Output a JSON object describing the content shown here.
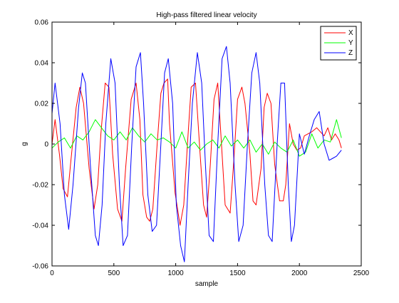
{
  "chart_data": {
    "type": "line",
    "title": "High-pass filtered linear velocity",
    "xlabel": "sample",
    "ylabel": "g",
    "xlim": [
      0,
      2500
    ],
    "ylim": [
      -0.06,
      0.06
    ],
    "x_ticks": [
      0,
      500,
      1000,
      1500,
      2000,
      2500
    ],
    "x_tick_labels": [
      "0",
      "500",
      "1000",
      "1500",
      "2000",
      "2500"
    ],
    "y_ticks": [
      -0.06,
      -0.04,
      -0.02,
      0,
      0.02,
      0.04,
      0.06
    ],
    "y_tick_labels": [
      "-0.06",
      "-0.04",
      "-0.02",
      "0",
      "0.02",
      "0.04",
      "0.06"
    ],
    "grid": false,
    "legend_position": "top-right",
    "series": [
      {
        "name": "X",
        "color": "#ff0000",
        "x": [
          0,
          25,
          60,
          90,
          125,
          150,
          195,
          225,
          255,
          300,
          340,
          370,
          395,
          430,
          460,
          490,
          530,
          565,
          595,
          640,
          680,
          710,
          735,
          765,
          790,
          815,
          850,
          880,
          905,
          935,
          950,
          995,
          1035,
          1065,
          1095,
          1125,
          1160,
          1195,
          1225,
          1250,
          1280,
          1310,
          1340,
          1375,
          1400,
          1440,
          1470,
          1500,
          1535,
          1560,
          1600,
          1625,
          1650,
          1690,
          1715,
          1740,
          1770,
          1800,
          1840,
          1870,
          1890,
          1920,
          1950,
          1980,
          2010,
          2040,
          2070,
          2100,
          2140,
          2170,
          2200,
          2230,
          2260,
          2290,
          2320,
          2340
        ],
        "y": [
          0.0,
          0.012,
          -0.005,
          -0.022,
          -0.026,
          -0.01,
          0.018,
          0.028,
          0.02,
          -0.012,
          -0.032,
          -0.02,
          0.005,
          0.03,
          0.028,
          -0.005,
          -0.032,
          -0.038,
          -0.012,
          0.022,
          0.03,
          0.012,
          -0.025,
          -0.036,
          -0.038,
          -0.032,
          0.0,
          0.025,
          0.03,
          0.032,
          0.01,
          -0.024,
          -0.04,
          -0.03,
          0.0,
          0.028,
          0.03,
          -0.003,
          -0.03,
          -0.036,
          -0.01,
          0.022,
          0.03,
          -0.005,
          -0.03,
          -0.034,
          -0.008,
          0.022,
          0.028,
          0.02,
          -0.005,
          -0.028,
          -0.03,
          -0.012,
          0.018,
          0.025,
          0.02,
          -0.01,
          -0.028,
          -0.028,
          -0.02,
          0.01,
          0.0,
          -0.003,
          -0.002,
          0.004,
          0.005,
          0.006,
          0.008,
          0.006,
          0.004,
          0.008,
          0.002,
          0.005,
          0.002,
          -0.002
        ]
      },
      {
        "name": "Y",
        "color": "#00ff00",
        "x": [
          0,
          50,
          100,
          150,
          200,
          250,
          300,
          350,
          400,
          450,
          500,
          550,
          600,
          650,
          700,
          750,
          800,
          850,
          900,
          950,
          1000,
          1050,
          1100,
          1150,
          1200,
          1250,
          1300,
          1350,
          1400,
          1450,
          1500,
          1550,
          1600,
          1650,
          1700,
          1750,
          1800,
          1850,
          1900,
          1950,
          2000,
          2050,
          2100,
          2150,
          2200,
          2250,
          2300,
          2340
        ],
        "y": [
          -0.002,
          0.001,
          0.003,
          -0.002,
          0.004,
          0.002,
          0.006,
          0.012,
          0.008,
          0.004,
          0.002,
          0.006,
          0.002,
          0.008,
          0.004,
          0.001,
          0.005,
          0.002,
          0.003,
          0.001,
          -0.002,
          0.006,
          -0.002,
          0.001,
          -0.003,
          0.0,
          0.002,
          -0.002,
          0.004,
          -0.001,
          0.002,
          -0.002,
          0.002,
          -0.004,
          0.0,
          -0.005,
          0.001,
          -0.002,
          -0.004,
          0.002,
          -0.006,
          -0.004,
          0.005,
          -0.002,
          0.002,
          0.001,
          0.012,
          0.003
        ]
      },
      {
        "name": "Z",
        "color": "#0000ff",
        "x": [
          0,
          25,
          65,
          100,
          135,
          170,
          215,
          245,
          270,
          310,
          350,
          375,
          405,
          435,
          475,
          510,
          545,
          575,
          610,
          645,
          680,
          715,
          740,
          775,
          810,
          845,
          880,
          910,
          940,
          975,
          1005,
          1040,
          1070,
          1100,
          1135,
          1175,
          1210,
          1240,
          1270,
          1305,
          1340,
          1375,
          1410,
          1440,
          1480,
          1510,
          1545,
          1580,
          1615,
          1650,
          1680,
          1720,
          1750,
          1780,
          1820,
          1850,
          1880,
          1910,
          1935,
          1960,
          2000,
          2040,
          2080,
          2120,
          2160,
          2200,
          2240,
          2270,
          2300,
          2340
        ],
        "y": [
          0.015,
          0.03,
          0.01,
          -0.025,
          -0.042,
          -0.02,
          0.018,
          0.035,
          0.03,
          -0.01,
          -0.045,
          -0.05,
          -0.03,
          0.01,
          0.042,
          0.03,
          -0.02,
          -0.05,
          -0.045,
          0.0,
          0.038,
          0.045,
          0.02,
          -0.025,
          -0.043,
          -0.04,
          0.0,
          0.035,
          0.042,
          0.02,
          -0.03,
          -0.05,
          -0.058,
          -0.02,
          0.02,
          0.045,
          0.03,
          -0.01,
          -0.045,
          -0.048,
          0.0,
          0.042,
          0.048,
          0.03,
          -0.02,
          -0.048,
          -0.04,
          0.0,
          0.035,
          0.045,
          0.03,
          -0.02,
          -0.045,
          -0.048,
          0.0,
          0.03,
          0.03,
          -0.02,
          -0.048,
          -0.04,
          0.005,
          -0.005,
          0.004,
          0.012,
          0.016,
          0.0,
          -0.008,
          -0.007,
          -0.006,
          -0.003
        ]
      }
    ]
  }
}
